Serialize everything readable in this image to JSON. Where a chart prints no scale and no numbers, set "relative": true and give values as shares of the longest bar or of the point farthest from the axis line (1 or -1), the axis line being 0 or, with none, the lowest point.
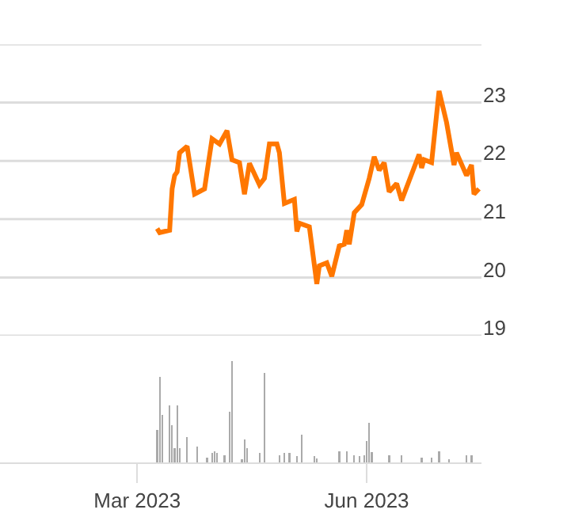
{
  "chart_data": [
    {
      "type": "line",
      "x": [
        "2023-03-09",
        "2023-03-10",
        "2023-03-14",
        "2023-03-15",
        "2023-03-16",
        "2023-03-17",
        "2023-03-18",
        "2023-03-21",
        "2023-03-24",
        "2023-03-28",
        "2023-03-29",
        "2023-03-31",
        "2023-04-03",
        "2023-04-06",
        "2023-04-08",
        "2023-04-11",
        "2023-04-13",
        "2023-04-15",
        "2023-04-19",
        "2023-04-21",
        "2023-04-23",
        "2023-04-26",
        "2023-04-27",
        "2023-04-29",
        "2023-05-03",
        "2023-05-04",
        "2023-05-05",
        "2023-05-09",
        "2023-05-12",
        "2023-05-13",
        "2023-05-16",
        "2023-05-18",
        "2023-05-21",
        "2023-05-23",
        "2023-05-24",
        "2023-05-25",
        "2023-05-27",
        "2023-05-30",
        "2023-06-02",
        "2023-06-04",
        "2023-06-06",
        "2023-06-08",
        "2023-06-10",
        "2023-06-13",
        "2023-06-15",
        "2023-06-18",
        "2023-06-22",
        "2023-06-23",
        "2023-06-24",
        "2023-06-27",
        "2023-06-30",
        "2023-07-03",
        "2023-07-06",
        "2023-07-07",
        "2023-07-11",
        "2023-07-13",
        "2023-07-14",
        "2023-07-16"
      ],
      "series": [
        {
          "color": "#ff7700",
          "values": [
            20.84,
            20.77,
            20.81,
            21.52,
            21.75,
            21.81,
            22.14,
            22.25,
            21.43,
            21.52,
            21.81,
            22.38,
            22.29,
            22.52,
            22.02,
            21.97,
            21.43,
            21.96,
            21.59,
            21.7,
            22.29,
            22.29,
            22.14,
            21.27,
            21.34,
            20.79,
            20.93,
            20.87,
            19.89,
            20.2,
            20.25,
            20.02,
            20.54,
            20.57,
            20.81,
            20.57,
            21.11,
            21.25,
            21.7,
            22.07,
            21.84,
            21.97,
            21.47,
            21.61,
            21.32,
            21.66,
            22.11,
            21.88,
            22.02,
            21.97,
            23.2,
            22.66,
            21.93,
            22.14,
            21.75,
            21.93,
            21.43,
            21.52
          ]
        }
      ],
      "xlim": [
        "2023-01-05",
        "2023-07-17"
      ],
      "ylim": [
        19,
        24
      ],
      "yticks": [
        19,
        20,
        21,
        22,
        23,
        {
          "value": 24,
          "label": null
        }
      ],
      "grid": "y",
      "tick_labels": "y",
      "marker": "none",
      "line_style": "solid"
    },
    {
      "type": "bar",
      "relative": true,
      "x": [
        "2023-03-09",
        "2023-03-10",
        "2023-03-11",
        "2023-03-14",
        "2023-03-15",
        "2023-03-16",
        "2023-03-17",
        "2023-03-18",
        "2023-03-21",
        "2023-03-25",
        "2023-03-29",
        "2023-03-31",
        "2023-04-01",
        "2023-04-02",
        "2023-04-05",
        "2023-04-07",
        "2023-04-08",
        "2023-04-12",
        "2023-04-13",
        "2023-04-14",
        "2023-04-19",
        "2023-04-21",
        "2023-04-27",
        "2023-04-29",
        "2023-05-01",
        "2023-05-04",
        "2023-05-06",
        "2023-05-11",
        "2023-05-12",
        "2023-05-21",
        "2023-05-24",
        "2023-05-27",
        "2023-05-29",
        "2023-05-31",
        "2023-06-01",
        "2023-06-02",
        "2023-06-03",
        "2023-06-10",
        "2023-06-15",
        "2023-06-23",
        "2023-06-27",
        "2023-06-30",
        "2023-07-04",
        "2023-07-11",
        "2023-07-13"
      ],
      "series": [
        {
          "color": "#aaaaaa",
          "values": [
            0.32,
            0.84,
            0.47,
            0.56,
            0.37,
            0.14,
            0.56,
            0.14,
            0.25,
            0.16,
            0.05,
            0.09,
            0.11,
            0.09,
            0.07,
            0.5,
            1,
            0.03,
            0.23,
            0.14,
            0.09,
            0.88,
            0.07,
            0.09,
            0.09,
            0.06,
            0.27,
            0.06,
            0.04,
            0.11,
            0.11,
            0.07,
            0.06,
            0.07,
            0.21,
            0.39,
            0.1,
            0.07,
            0.07,
            0.05,
            0.05,
            0.11,
            0.03,
            0.07,
            0.07
          ]
        }
      ],
      "xlim": [
        "2023-01-05",
        "2023-07-17"
      ],
      "xticks": [
        {
          "value": "2023-03-01",
          "label": "Mar 2023"
        },
        {
          "value": "2023-06-01",
          "label": "Jun 2023"
        }
      ],
      "grid": false,
      "tick_labels": "x"
    }
  ]
}
